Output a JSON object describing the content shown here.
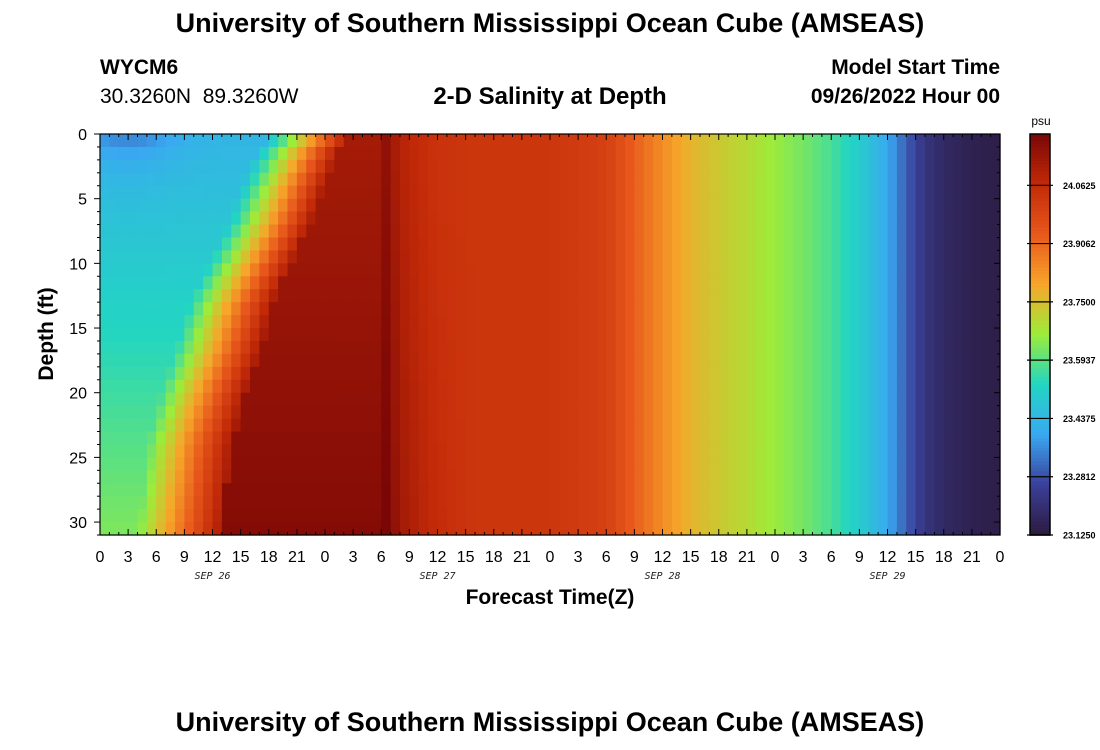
{
  "header": {
    "title": "University of Southern Mississippi Ocean Cube (AMSEAS)",
    "station_id": "WYCM6",
    "coords": "30.3260N  89.3260W",
    "subtitle": "2-D Salinity at Depth",
    "model_start_label": "Model Start Time",
    "model_start_value": "09/26/2022 Hour 00"
  },
  "footer": {
    "title": "University of Southern Mississippi Ocean Cube (AMSEAS)"
  },
  "colors": {
    "colormap": [
      "#2c1b3f",
      "#3a3f99",
      "#3aa8f2",
      "#22d6c2",
      "#9cec3a",
      "#f7a62a",
      "#e8581c",
      "#c22a08",
      "#7a0606"
    ]
  },
  "chart_data": {
    "type": "heatmap",
    "title": "2-D Salinity at Depth",
    "xlabel": "Forecast Time(Z)",
    "ylabel": "Depth (ft)",
    "x_unit": "hours since 09/26/2022 00Z",
    "xlim": [
      0,
      96
    ],
    "ylim": [
      0,
      31
    ],
    "x_ticks": [
      0,
      3,
      6,
      9,
      12,
      15,
      18,
      21,
      24,
      27,
      30,
      33,
      36,
      39,
      42,
      45,
      48,
      51,
      54,
      57,
      60,
      63,
      66,
      69,
      72,
      75,
      78,
      81,
      84,
      87,
      90,
      93,
      96
    ],
    "x_tick_labels": [
      "0",
      "3",
      "6",
      "9",
      "12",
      "15",
      "18",
      "21",
      "0",
      "3",
      "6",
      "9",
      "12",
      "15",
      "18",
      "21",
      "0",
      "3",
      "6",
      "9",
      "12",
      "15",
      "18",
      "21",
      "0",
      "3",
      "6",
      "9",
      "12",
      "15",
      "18",
      "21",
      "0"
    ],
    "date_labels": [
      {
        "hour": 12,
        "label": "SEP 26"
      },
      {
        "hour": 36,
        "label": "SEP 27"
      },
      {
        "hour": 60,
        "label": "SEP 28"
      },
      {
        "hour": 84,
        "label": "SEP 29"
      }
    ],
    "y_ticks": [
      0,
      5,
      10,
      15,
      20,
      25,
      30
    ],
    "y_tick_labels": [
      "0",
      "5",
      "10",
      "15",
      "20",
      "25",
      "30"
    ],
    "colorbar": {
      "unit": "psu",
      "min": 23.125,
      "max": 24.2,
      "ticks": [
        23.125,
        23.28125,
        23.4375,
        23.59375,
        23.75,
        23.90625,
        24.0625
      ],
      "tick_labels": [
        "23.1250",
        "23.2812",
        "23.4375",
        "23.5937",
        "23.7500",
        "23.9062",
        "24.0625"
      ]
    },
    "front_depth_ft": [
      0,
      1.5,
      4,
      7,
      10,
      13,
      17,
      20,
      24,
      31
    ],
    "front_hour": [
      27,
      25.5,
      24,
      22.5,
      20.5,
      18.5,
      17,
      15.5,
      14,
      13
    ],
    "time_profile_hours": [
      30,
      32,
      34,
      36,
      40,
      44,
      48,
      54,
      57,
      60,
      63,
      66,
      69,
      72,
      75,
      78,
      81,
      84,
      86,
      88,
      90,
      93,
      96
    ],
    "time_profile_psu": [
      24.18,
      24.09,
      24.06,
      24.04,
      24.03,
      24.03,
      24.03,
      24.0,
      23.92,
      23.84,
      23.77,
      23.73,
      23.7,
      23.66,
      23.62,
      23.57,
      23.5,
      23.4,
      23.3,
      23.22,
      23.18,
      23.15,
      23.14
    ]
  }
}
